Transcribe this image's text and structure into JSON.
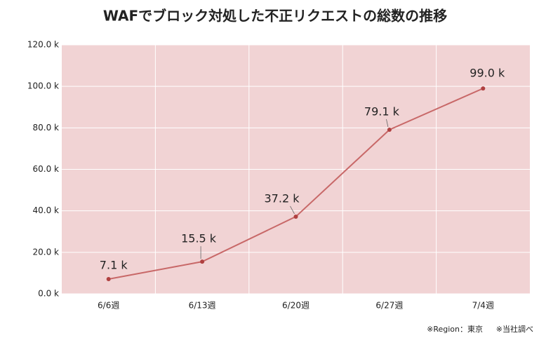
{
  "chart_data": {
    "type": "line",
    "title": "WAFでブロック対処した不正リクエストの総数の推移",
    "categories": [
      "6/6週",
      "6/13週",
      "6/20週",
      "6/27週",
      "7/4週"
    ],
    "series": [
      {
        "color": "#c86868",
        "values": [
          7.1,
          15.5,
          37.2,
          79.1,
          99.0
        ],
        "value_labels": [
          "7.1 k",
          "15.5 k",
          "37.2 k",
          "79.1 k",
          "99.0 k"
        ]
      }
    ],
    "ylim": [
      0,
      120
    ],
    "yticks": [
      {
        "value": 0,
        "label": "0.0 k"
      },
      {
        "value": 20,
        "label": "20.0 k"
      },
      {
        "value": 40,
        "label": "40.0 k"
      },
      {
        "value": 60,
        "label": "60.0 k"
      },
      {
        "value": 80,
        "label": "80.0 k"
      },
      {
        "value": 100,
        "label": "100.0 k"
      },
      {
        "value": 120,
        "label": "120.0 k"
      }
    ],
    "grid": true,
    "annotations": [
      "※Region：東京",
      "※当社調べ"
    ]
  }
}
